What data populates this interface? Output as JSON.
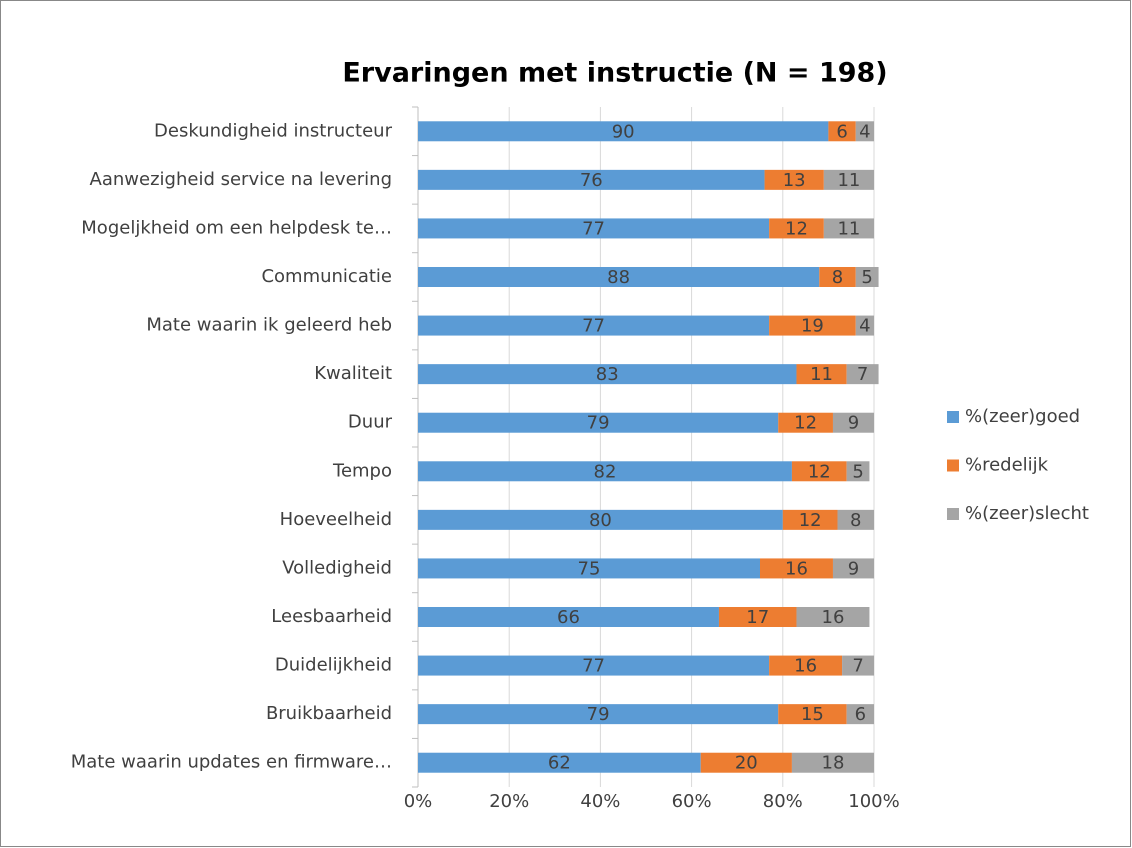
{
  "chart_data": {
    "type": "stacked_barh",
    "title": "Ervaringen met instructie (N = 198)",
    "categories": [
      "Deskundigheid instructeur",
      "Aanwezigheid service na levering",
      "Mogeljkheid om een helpdesk te…",
      "Communicatie",
      "Mate waarin ik geleerd heb",
      "Kwaliteit",
      "Duur",
      "Tempo",
      "Hoeveelheid",
      "Volledigheid",
      "Leesbaarheid",
      "Duidelijkheid",
      "Bruikbaarheid",
      "Mate waarin updates en firmware…"
    ],
    "series": [
      {
        "name": "%(zeer)goed",
        "color": "#5b9bd5",
        "values": [
          90,
          76,
          77,
          88,
          77,
          83,
          79,
          82,
          80,
          75,
          66,
          77,
          79,
          62
        ]
      },
      {
        "name": "%redelijk",
        "color": "#ed7d31",
        "values": [
          6,
          13,
          12,
          8,
          19,
          11,
          12,
          12,
          12,
          16,
          17,
          16,
          15,
          20
        ]
      },
      {
        "name": "%(zeer)slecht",
        "color": "#a5a5a5",
        "values": [
          4,
          11,
          11,
          5,
          4,
          7,
          9,
          5,
          8,
          9,
          16,
          7,
          6,
          18
        ]
      }
    ],
    "xlim": [
      0,
      100
    ],
    "xticks": [
      {
        "value": 0,
        "label": "0%"
      },
      {
        "value": 20,
        "label": "20%"
      },
      {
        "value": 40,
        "label": "40%"
      },
      {
        "value": 60,
        "label": "60%"
      },
      {
        "value": 80,
        "label": "80%"
      },
      {
        "value": 100,
        "label": "100%"
      }
    ],
    "grid": true,
    "legend": "right"
  }
}
